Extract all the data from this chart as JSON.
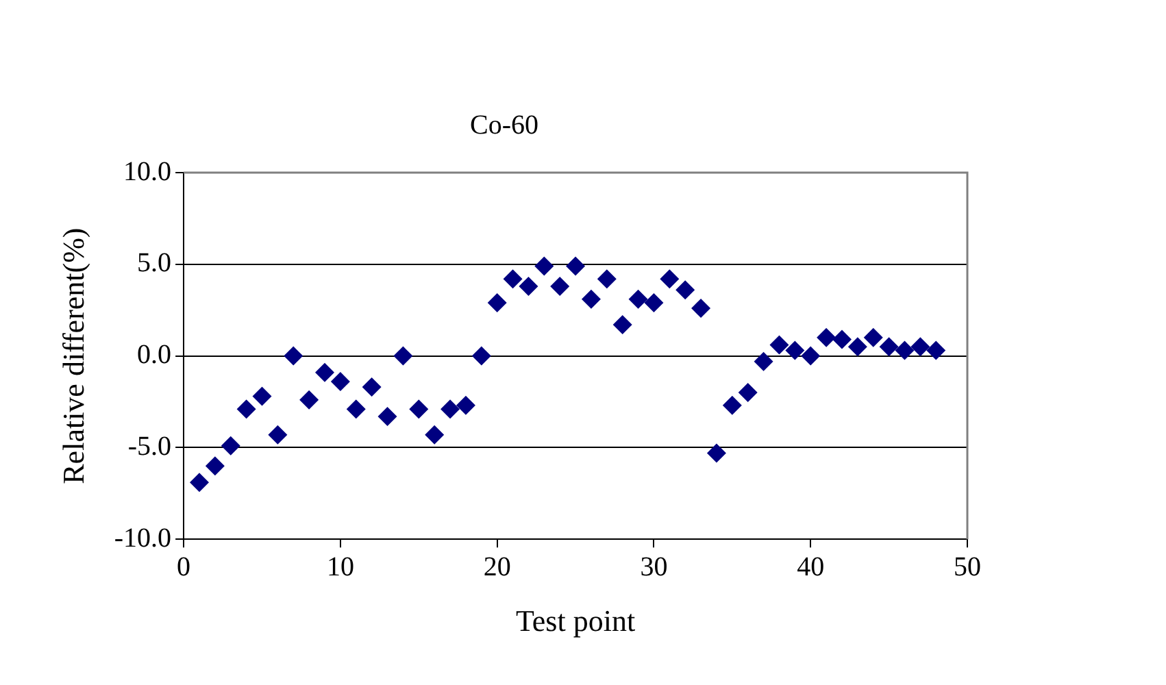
{
  "chart_data": {
    "type": "scatter",
    "title": "Co-60",
    "xlabel": "Test point",
    "ylabel": "Relative different(%)",
    "x": [
      1,
      2,
      3,
      4,
      5,
      6,
      7,
      8,
      9,
      10,
      11,
      12,
      13,
      14,
      15,
      16,
      17,
      18,
      19,
      20,
      21,
      22,
      23,
      24,
      25,
      26,
      27,
      28,
      29,
      30,
      31,
      32,
      33,
      34,
      35,
      36,
      37,
      38,
      39,
      40,
      41,
      42,
      43,
      44,
      45,
      46,
      47,
      48
    ],
    "series": [
      {
        "color": "#000080",
        "values": [
          -6.9,
          -6.0,
          -4.9,
          -2.9,
          -2.2,
          -4.3,
          0.0,
          -2.4,
          -0.9,
          -1.4,
          -2.9,
          -1.7,
          -3.3,
          0.0,
          -2.9,
          -4.3,
          -2.9,
          -2.7,
          0.0,
          2.9,
          4.2,
          3.8,
          4.9,
          3.8,
          4.9,
          3.1,
          4.2,
          1.7,
          3.1,
          2.9,
          4.2,
          3.6,
          2.6,
          -5.3,
          -2.7,
          -2.0,
          -0.3,
          0.6,
          0.3,
          0.0,
          1.0,
          0.9,
          0.5,
          1.0,
          0.5,
          0.3,
          0.5,
          0.3
        ]
      }
    ],
    "xlim": [
      0,
      50
    ],
    "xticks": [
      0,
      10,
      20,
      30,
      40,
      50
    ],
    "ylim": [
      -10,
      10
    ],
    "yticks": [
      {
        "value": -10,
        "label": "-10.0"
      },
      {
        "value": -5,
        "label": "-5.0"
      },
      {
        "value": 0,
        "label": "0.0"
      },
      {
        "value": 5,
        "label": "5.0"
      },
      {
        "value": 10,
        "label": "10.0"
      }
    ],
    "grid": "y",
    "legend": false,
    "marker": "diamond"
  }
}
